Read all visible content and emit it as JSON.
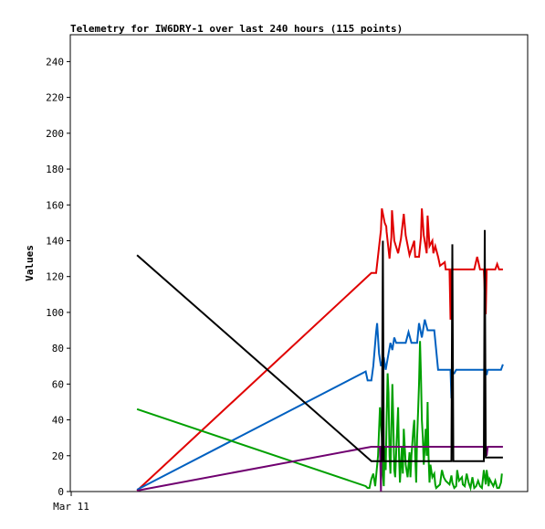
{
  "chart_data": {
    "type": "line",
    "title": "Telemetry for IW6DRY-1 over last 240 hours (115 points)",
    "ylabel": "Values",
    "xlabel": "",
    "x_tick_labels": [
      "Mar 11"
    ],
    "ylim": [
      0,
      255
    ],
    "y_ticks": [
      0,
      20,
      40,
      60,
      80,
      100,
      120,
      140,
      160,
      180,
      200,
      220,
      240
    ],
    "grid": false,
    "legend": "none",
    "x_unit": "hours",
    "xlim": [
      0,
      240
    ],
    "series": [
      {
        "color": "#e00000",
        "points": [
          [
            35.0,
            0.5
          ],
          [
            158.0,
            122.0
          ],
          [
            160.5,
            122.0
          ],
          [
            163.0,
            146.0
          ],
          [
            163.5,
            158.0
          ],
          [
            165.0,
            150.0
          ],
          [
            165.8,
            148.0
          ],
          [
            166.0,
            145.0
          ],
          [
            167.5,
            130.0
          ],
          [
            168.5,
            142.0
          ],
          [
            168.8,
            157.0
          ],
          [
            170.0,
            140.0
          ],
          [
            172.0,
            133.0
          ],
          [
            173.5,
            141.0
          ],
          [
            175.0,
            155.0
          ],
          [
            176.0,
            143.0
          ],
          [
            178.0,
            132.0
          ],
          [
            180.5,
            140.0
          ],
          [
            181.0,
            131.0
          ],
          [
            183.0,
            131.0
          ],
          [
            184.0,
            142.0
          ],
          [
            184.5,
            158.0
          ],
          [
            185.5,
            143.0
          ],
          [
            187.0,
            133.0
          ],
          [
            187.5,
            154.0
          ],
          [
            188.5,
            137.0
          ],
          [
            190.0,
            140.0
          ],
          [
            190.5,
            133.0
          ],
          [
            191.5,
            137.0
          ],
          [
            193.0,
            131.0
          ],
          [
            194.0,
            126.0
          ],
          [
            196.5,
            128.0
          ],
          [
            197.0,
            124.0
          ],
          [
            199.0,
            124.0
          ],
          [
            199.5,
            96.0
          ],
          [
            200.0,
            124.0
          ],
          [
            212.0,
            124.0
          ],
          [
            213.5,
            131.0
          ],
          [
            215.0,
            124.0
          ],
          [
            217.0,
            124.0
          ],
          [
            218.0,
            99.0
          ],
          [
            218.5,
            124.0
          ],
          [
            223.0,
            124.0
          ],
          [
            224.0,
            127.0
          ],
          [
            225.0,
            124.0
          ],
          [
            227.0,
            124.0
          ]
        ]
      },
      {
        "color": "#0060c0",
        "points": [
          [
            35.0,
            1.0
          ],
          [
            155.0,
            67.0
          ],
          [
            156.0,
            62.0
          ],
          [
            158.0,
            62.0
          ],
          [
            159.0,
            70.0
          ],
          [
            160.5,
            89.0
          ],
          [
            161.0,
            94.0
          ],
          [
            162.0,
            77.0
          ],
          [
            163.0,
            70.0
          ],
          [
            164.5,
            75.0
          ],
          [
            165.5,
            68.0
          ],
          [
            167.0,
            77.0
          ],
          [
            168.0,
            83.0
          ],
          [
            169.0,
            79.0
          ],
          [
            170.0,
            86.0
          ],
          [
            171.0,
            83.0
          ],
          [
            174.0,
            83.0
          ],
          [
            176.0,
            83.0
          ],
          [
            177.5,
            89.0
          ],
          [
            179.0,
            83.0
          ],
          [
            182.0,
            83.0
          ],
          [
            183.0,
            94.0
          ],
          [
            184.5,
            86.0
          ],
          [
            186.0,
            96.0
          ],
          [
            187.5,
            90.0
          ],
          [
            191.0,
            90.0
          ],
          [
            193.0,
            68.0
          ],
          [
            199.5,
            68.0
          ],
          [
            200.0,
            52.0
          ],
          [
            200.5,
            66.0
          ],
          [
            201.5,
            66.0
          ],
          [
            202.5,
            68.0
          ],
          [
            210.0,
            68.0
          ],
          [
            218.0,
            68.0
          ],
          [
            218.5,
            65.0
          ],
          [
            219.0,
            68.0
          ],
          [
            226.0,
            68.0
          ],
          [
            227.0,
            71.0
          ]
        ]
      },
      {
        "color": "#00a000",
        "points": [
          [
            35.0,
            46.0
          ],
          [
            155.0,
            3.0
          ],
          [
            156.0,
            2.0
          ],
          [
            157.0,
            2.0
          ],
          [
            158.0,
            7.0
          ],
          [
            159.0,
            10.0
          ],
          [
            160.0,
            3.0
          ],
          [
            161.5,
            20.0
          ],
          [
            162.5,
            47.0
          ],
          [
            163.5,
            30.0
          ],
          [
            164.0,
            10.0
          ],
          [
            164.5,
            3.0
          ],
          [
            165.0,
            25.0
          ],
          [
            165.5,
            12.0
          ],
          [
            166.0,
            40.0
          ],
          [
            166.5,
            66.0
          ],
          [
            167.0,
            55.0
          ],
          [
            167.5,
            20.0
          ],
          [
            168.0,
            10.0
          ],
          [
            168.5,
            35.0
          ],
          [
            169.0,
            60.0
          ],
          [
            169.5,
            40.0
          ],
          [
            170.0,
            12.0
          ],
          [
            170.5,
            8.0
          ],
          [
            171.0,
            22.0
          ],
          [
            172.0,
            47.0
          ],
          [
            172.5,
            20.0
          ],
          [
            173.0,
            5.0
          ],
          [
            174.0,
            25.0
          ],
          [
            174.5,
            10.0
          ],
          [
            175.0,
            35.0
          ],
          [
            176.0,
            15.0
          ],
          [
            177.0,
            8.0
          ],
          [
            178.0,
            22.0
          ],
          [
            178.5,
            8.0
          ],
          [
            179.0,
            20.0
          ],
          [
            180.0,
            35.0
          ],
          [
            180.5,
            40.0
          ],
          [
            181.0,
            20.0
          ],
          [
            181.5,
            5.0
          ],
          [
            182.0,
            30.0
          ],
          [
            182.5,
            45.0
          ],
          [
            183.0,
            60.0
          ],
          [
            183.5,
            84.0
          ],
          [
            184.0,
            65.0
          ],
          [
            184.5,
            40.0
          ],
          [
            185.0,
            30.0
          ],
          [
            185.5,
            15.0
          ],
          [
            186.0,
            25.0
          ],
          [
            186.5,
            35.0
          ],
          [
            187.0,
            20.0
          ],
          [
            187.5,
            50.0
          ],
          [
            188.0,
            20.0
          ],
          [
            188.5,
            5.0
          ],
          [
            189.0,
            15.0
          ],
          [
            190.0,
            8.0
          ],
          [
            191.0,
            10.0
          ],
          [
            191.5,
            4.0
          ],
          [
            192.0,
            2.0
          ],
          [
            194.0,
            4.0
          ],
          [
            195.0,
            12.0
          ],
          [
            196.0,
            8.0
          ],
          [
            197.0,
            6.0
          ],
          [
            199.0,
            4.0
          ],
          [
            200.0,
            9.0
          ],
          [
            200.5,
            5.0
          ],
          [
            201.5,
            2.0
          ],
          [
            202.5,
            3.0
          ],
          [
            203.0,
            12.0
          ],
          [
            204.0,
            6.0
          ],
          [
            205.5,
            8.0
          ],
          [
            206.0,
            4.0
          ],
          [
            207.0,
            3.0
          ],
          [
            208.0,
            10.0
          ],
          [
            209.0,
            5.0
          ],
          [
            210.0,
            2.0
          ],
          [
            211.0,
            8.0
          ],
          [
            212.0,
            2.0
          ],
          [
            213.0,
            3.0
          ],
          [
            214.0,
            6.0
          ],
          [
            215.0,
            3.0
          ],
          [
            216.0,
            2.0
          ],
          [
            217.0,
            12.0
          ],
          [
            218.0,
            4.0
          ],
          [
            218.5,
            12.0
          ],
          [
            219.0,
            8.0
          ],
          [
            219.5,
            3.0
          ],
          [
            220.0,
            7.0
          ],
          [
            221.0,
            5.0
          ],
          [
            222.0,
            3.0
          ],
          [
            223.0,
            6.0
          ],
          [
            224.0,
            2.0
          ],
          [
            225.0,
            2.0
          ],
          [
            226.0,
            5.0
          ],
          [
            226.5,
            10.0
          ]
        ]
      },
      {
        "color": "#700070",
        "points": [
          [
            35.0,
            0.5
          ],
          [
            158.0,
            25.0
          ],
          [
            161.0,
            25.0
          ],
          [
            162.5,
            25.0
          ],
          [
            163.0,
            0.0
          ],
          [
            163.3,
            25.0
          ],
          [
            218.0,
            25.0
          ],
          [
            218.5,
            20.0
          ],
          [
            219.0,
            25.0
          ],
          [
            227.0,
            25.0
          ]
        ]
      },
      {
        "color": "#000000",
        "points": [
          [
            35.0,
            132.0
          ],
          [
            158.0,
            17.0
          ],
          [
            163.5,
            17.0
          ],
          [
            164.0,
            140.0
          ],
          [
            164.5,
            17.0
          ],
          [
            200.0,
            17.0
          ],
          [
            200.5,
            138.0
          ],
          [
            201.0,
            17.0
          ],
          [
            217.0,
            17.0
          ],
          [
            217.5,
            146.0
          ],
          [
            218.0,
            19.0
          ],
          [
            227.0,
            19.0
          ]
        ]
      }
    ]
  }
}
